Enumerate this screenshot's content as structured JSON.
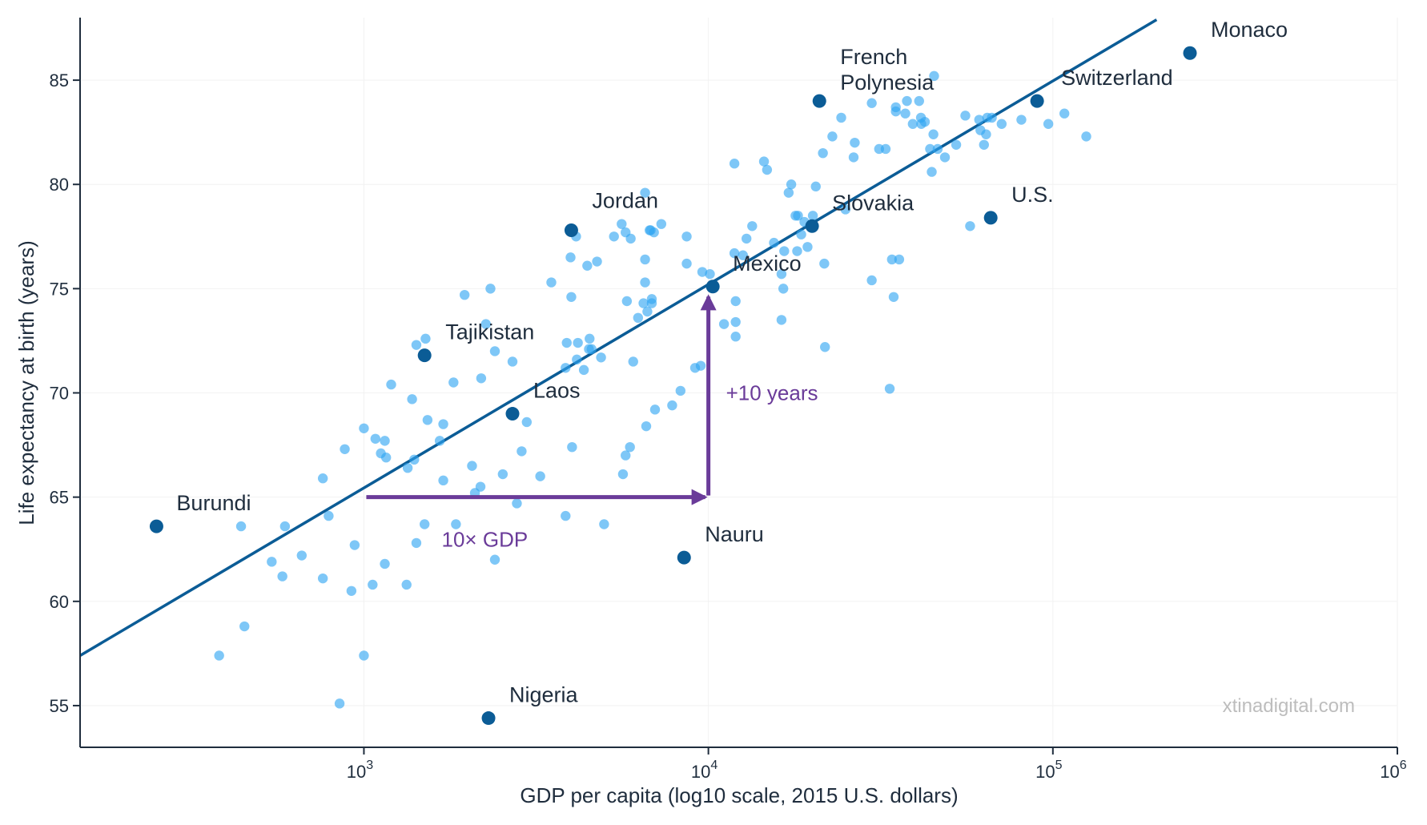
{
  "colors": {
    "axis": "#1f2d3d",
    "text": "#1f2d3d",
    "point": "#2fa4f2",
    "highlight": "#0b5c96",
    "trend": "#0b5c96",
    "annotation": "#6a3b99",
    "watermark": "#bdbdbd",
    "grid": "#f2f2f2"
  },
  "chart_data": {
    "type": "scatter",
    "xlabel": "GDP per capita (log10 scale, 2015 U.S. dollars)",
    "ylabel": "Life expectancy at birth (years)",
    "x_scale": "log10",
    "xlim": [
      150,
      1000000
    ],
    "ylim": [
      53,
      88
    ],
    "x_ticks": [
      {
        "value": 1000,
        "base": "10",
        "exp": "3"
      },
      {
        "value": 10000,
        "base": "10",
        "exp": "4"
      },
      {
        "value": 100000,
        "base": "10",
        "exp": "5"
      },
      {
        "value": 1000000,
        "base": "10",
        "exp": "6"
      }
    ],
    "y_ticks": [
      "55",
      "60",
      "65",
      "70",
      "75",
      "80",
      "85"
    ],
    "grid": true,
    "trend_line": {
      "x": [
        150,
        200000
      ],
      "y": [
        57.4,
        87.9
      ]
    },
    "highlighted": [
      {
        "name": "Monaco",
        "x": 250000,
        "y": 86.3
      },
      {
        "name": "French\nPolynesia",
        "x": 21000,
        "y": 84.0
      },
      {
        "name": "Switzerland",
        "x": 90000,
        "y": 84.0
      },
      {
        "name": "Jordan",
        "x": 4000,
        "y": 77.8
      },
      {
        "name": "Slovakia",
        "x": 20000,
        "y": 78.0
      },
      {
        "name": "U.S.",
        "x": 66000,
        "y": 78.4
      },
      {
        "name": "Mexico",
        "x": 10300,
        "y": 75.1
      },
      {
        "name": "Tajikistan",
        "x": 1500,
        "y": 71.8
      },
      {
        "name": "Laos",
        "x": 2700,
        "y": 69.0
      },
      {
        "name": "Burundi",
        "x": 250,
        "y": 63.6
      },
      {
        "name": "Nauru",
        "x": 8500,
        "y": 62.1
      },
      {
        "name": "Nigeria",
        "x": 2300,
        "y": 54.4
      }
    ],
    "annotations": {
      "gdp_arrow": {
        "label": "10× GDP",
        "x_from": 1000,
        "x_to": 10000,
        "y": 65
      },
      "life_arrow": {
        "label": "+10 years",
        "x": 10000,
        "y_from": 65,
        "y_to": 75
      }
    },
    "points": [
      [
        380,
        57.4
      ],
      [
        450,
        58.8
      ],
      [
        440,
        63.6
      ],
      [
        540,
        61.9
      ],
      [
        580,
        61.2
      ],
      [
        590,
        63.6
      ],
      [
        660,
        62.2
      ],
      [
        760,
        61.1
      ],
      [
        790,
        64.1
      ],
      [
        760,
        65.9
      ],
      [
        880,
        67.3
      ],
      [
        920,
        60.5
      ],
      [
        940,
        62.7
      ],
      [
        1000,
        68.3
      ],
      [
        1000,
        57.4
      ],
      [
        850,
        55.1
      ],
      [
        1060,
        60.8
      ],
      [
        1080,
        67.8
      ],
      [
        1120,
        67.1
      ],
      [
        1150,
        67.7
      ],
      [
        1160,
        66.9
      ],
      [
        1150,
        61.8
      ],
      [
        1200,
        70.4
      ],
      [
        1330,
        60.8
      ],
      [
        1340,
        66.4
      ],
      [
        1380,
        69.7
      ],
      [
        1400,
        66.8
      ],
      [
        1420,
        62.8
      ],
      [
        1420,
        72.3
      ],
      [
        1500,
        63.7
      ],
      [
        1510,
        72.6
      ],
      [
        1530,
        68.7
      ],
      [
        1660,
        67.7
      ],
      [
        1700,
        68.5
      ],
      [
        1700,
        65.8
      ],
      [
        1820,
        70.5
      ],
      [
        1850,
        63.7
      ],
      [
        1960,
        74.7
      ],
      [
        2060,
        66.5
      ],
      [
        2100,
        65.2
      ],
      [
        2190,
        70.7
      ],
      [
        2180,
        65.5
      ],
      [
        2260,
        73.3
      ],
      [
        2330,
        75.0
      ],
      [
        2400,
        72.0
      ],
      [
        2400,
        62.0
      ],
      [
        2530,
        66.1
      ],
      [
        2700,
        71.5
      ],
      [
        2780,
        64.7
      ],
      [
        2870,
        67.2
      ],
      [
        2970,
        68.6
      ],
      [
        3250,
        66.0
      ],
      [
        3500,
        75.3
      ],
      [
        3880,
        72.4
      ],
      [
        3850,
        71.2
      ],
      [
        3850,
        64.1
      ],
      [
        3980,
        76.5
      ],
      [
        4000,
        74.6
      ],
      [
        4020,
        67.4
      ],
      [
        4130,
        77.5
      ],
      [
        4150,
        71.6
      ],
      [
        4180,
        72.4
      ],
      [
        4350,
        71.1
      ],
      [
        4450,
        76.1
      ],
      [
        4500,
        72.1
      ],
      [
        4520,
        72.6
      ],
      [
        4580,
        72.1
      ],
      [
        4750,
        76.3
      ],
      [
        4880,
        71.7
      ],
      [
        4980,
        63.7
      ],
      [
        5320,
        77.5
      ],
      [
        5600,
        78.1
      ],
      [
        5650,
        66.1
      ],
      [
        5750,
        77.7
      ],
      [
        5750,
        67.0
      ],
      [
        5800,
        74.4
      ],
      [
        5920,
        67.4
      ],
      [
        5950,
        77.4
      ],
      [
        6050,
        71.5
      ],
      [
        6250,
        73.6
      ],
      [
        6480,
        74.3
      ],
      [
        6550,
        79.6
      ],
      [
        6550,
        75.3
      ],
      [
        6550,
        76.4
      ],
      [
        6600,
        68.4
      ],
      [
        6650,
        73.9
      ],
      [
        6750,
        77.8
      ],
      [
        6800,
        77.8
      ],
      [
        6850,
        74.3
      ],
      [
        6850,
        74.5
      ],
      [
        6950,
        77.7
      ],
      [
        7000,
        69.2
      ],
      [
        7300,
        78.1
      ],
      [
        7850,
        69.4
      ],
      [
        8300,
        70.1
      ],
      [
        8650,
        76.2
      ],
      [
        8650,
        77.5
      ],
      [
        9150,
        71.2
      ],
      [
        9500,
        71.3
      ],
      [
        9600,
        75.8
      ],
      [
        10100,
        75.7
      ],
      [
        11100,
        73.3
      ],
      [
        11900,
        81.0
      ],
      [
        11900,
        76.7
      ],
      [
        12000,
        74.4
      ],
      [
        12000,
        73.4
      ],
      [
        12000,
        72.7
      ],
      [
        12600,
        76.6
      ],
      [
        12900,
        77.4
      ],
      [
        13400,
        78.0
      ],
      [
        14500,
        81.1
      ],
      [
        14800,
        80.7
      ],
      [
        15500,
        77.2
      ],
      [
        16300,
        75.7
      ],
      [
        16300,
        73.5
      ],
      [
        16500,
        75.0
      ],
      [
        16600,
        76.8
      ],
      [
        17100,
        79.6
      ],
      [
        17400,
        80.0
      ],
      [
        17900,
        78.5
      ],
      [
        18100,
        76.8
      ],
      [
        18200,
        78.5
      ],
      [
        18600,
        77.6
      ],
      [
        19000,
        78.2
      ],
      [
        19400,
        77.0
      ],
      [
        20100,
        78.5
      ],
      [
        20500,
        79.9
      ],
      [
        21500,
        81.5
      ],
      [
        21700,
        76.2
      ],
      [
        21800,
        72.2
      ],
      [
        22900,
        82.3
      ],
      [
        24300,
        83.2
      ],
      [
        25000,
        78.8
      ],
      [
        26400,
        81.3
      ],
      [
        26600,
        82.0
      ],
      [
        29800,
        83.9
      ],
      [
        29800,
        75.4
      ],
      [
        31300,
        81.7
      ],
      [
        32700,
        81.7
      ],
      [
        33600,
        70.2
      ],
      [
        34100,
        76.4
      ],
      [
        34500,
        74.6
      ],
      [
        35000,
        83.5
      ],
      [
        35000,
        83.7
      ],
      [
        35800,
        76.4
      ],
      [
        37300,
        83.4
      ],
      [
        37700,
        84.0
      ],
      [
        39200,
        82.9
      ],
      [
        40900,
        84.0
      ],
      [
        41400,
        83.2
      ],
      [
        41500,
        82.9
      ],
      [
        42500,
        83.0
      ],
      [
        44000,
        81.7
      ],
      [
        44500,
        80.6
      ],
      [
        45000,
        82.4
      ],
      [
        45200,
        85.2
      ],
      [
        46300,
        81.7
      ],
      [
        48600,
        81.3
      ],
      [
        52400,
        81.9
      ],
      [
        55700,
        83.3
      ],
      [
        57500,
        78.0
      ],
      [
        61100,
        83.1
      ],
      [
        61600,
        82.6
      ],
      [
        63100,
        81.9
      ],
      [
        64000,
        82.4
      ],
      [
        64500,
        83.2
      ],
      [
        66500,
        83.2
      ],
      [
        71000,
        82.9
      ],
      [
        81000,
        83.1
      ],
      [
        97000,
        82.9
      ],
      [
        108000,
        83.4
      ],
      [
        125000,
        82.3
      ]
    ]
  },
  "watermark": "xtinadigital.com"
}
